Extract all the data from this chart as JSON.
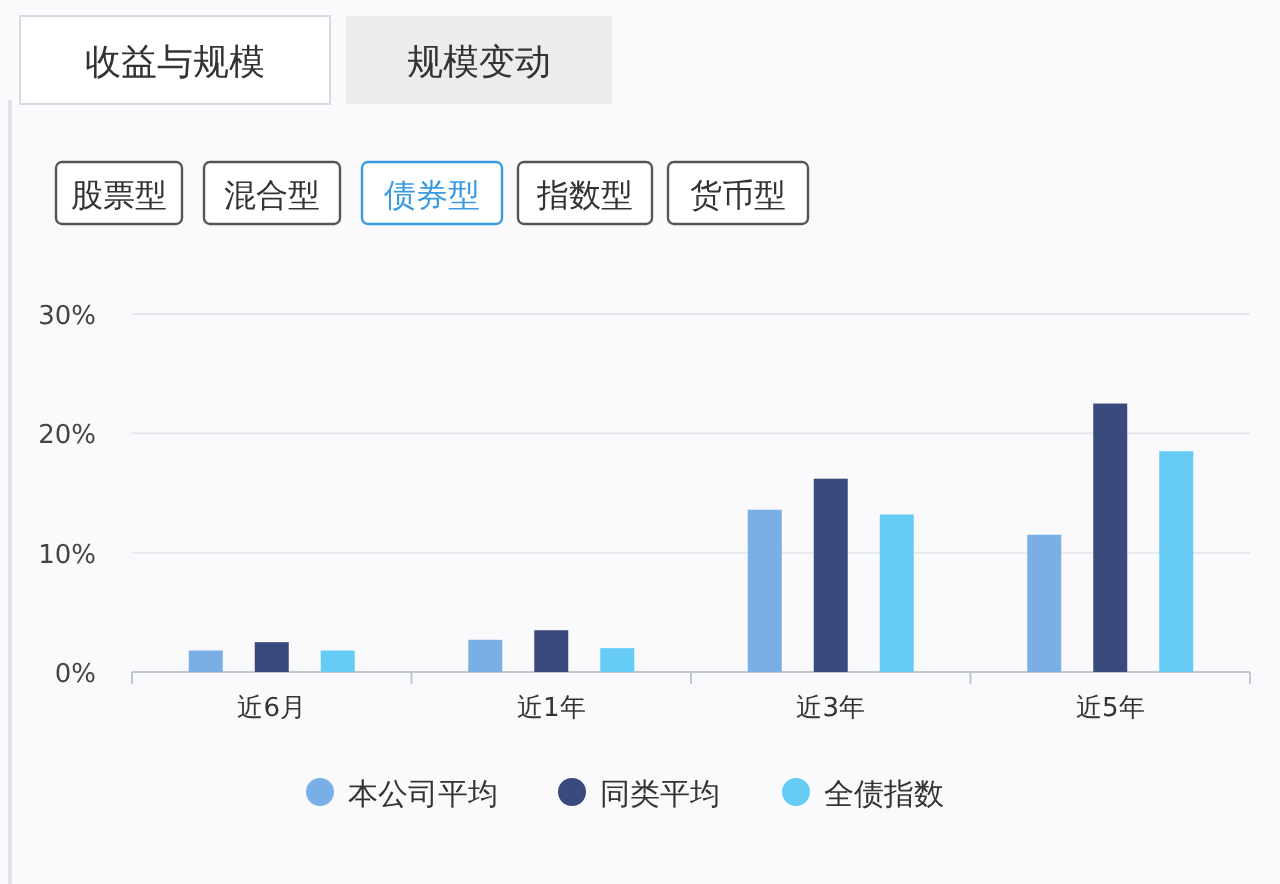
{
  "chart_data": {
    "type": "bar",
    "categories": [
      "近6月",
      "近1年",
      "近3年",
      "近5年"
    ],
    "series": [
      {
        "name": "本公司平均",
        "color": "#7aafe6",
        "values": [
          1.8,
          2.7,
          13.6,
          11.5
        ]
      },
      {
        "name": "同类平均",
        "color": "#3a4a7c",
        "values": [
          2.5,
          3.5,
          16.2,
          22.5
        ]
      },
      {
        "name": "全债指数",
        "color": "#66ccf6",
        "values": [
          1.8,
          2.0,
          13.2,
          18.5
        ]
      }
    ],
    "ylim": [
      0,
      30
    ],
    "yticks": [
      {
        "value": 0,
        "label": "0%"
      },
      {
        "value": 10,
        "label": "10%"
      },
      {
        "value": 20,
        "label": "20%"
      },
      {
        "value": 30,
        "label": "30%"
      }
    ],
    "grid": "y",
    "legend": "bottom",
    "annotations": [
      "收益与规模",
      "规模变动",
      "股票型",
      "混合型",
      "债券型",
      "指数型",
      "货币型"
    ]
  }
}
